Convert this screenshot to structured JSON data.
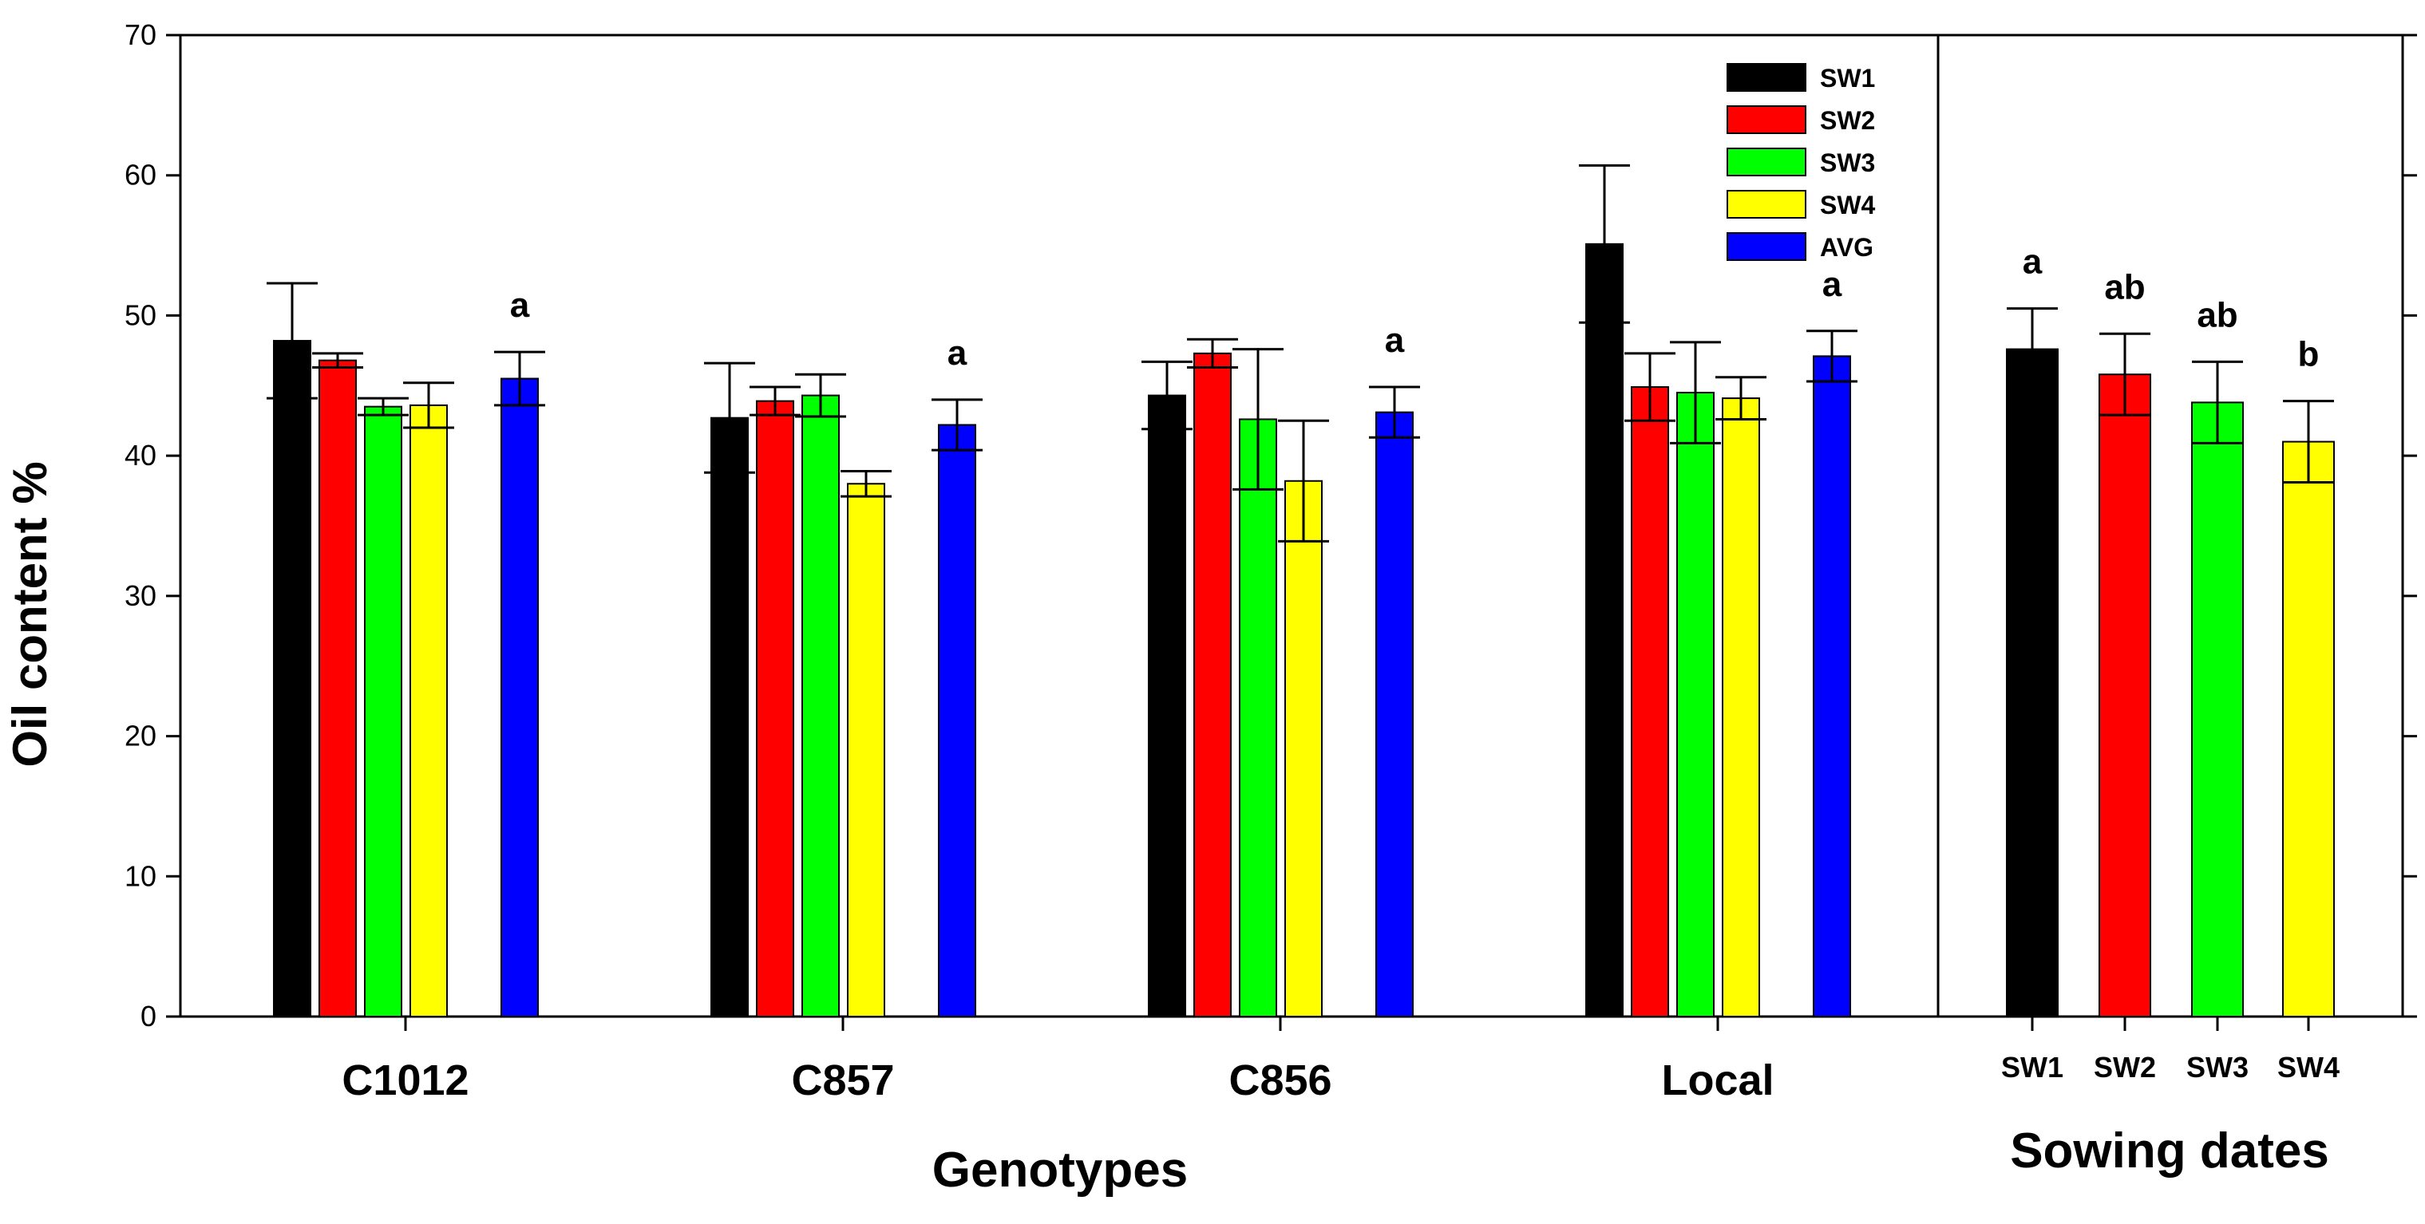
{
  "chart_data": {
    "type": "bar",
    "y_axis": {
      "label": "Oil content %",
      "ylim": [
        0,
        70
      ],
      "ticks": [
        0,
        10,
        20,
        30,
        40,
        50,
        60,
        70
      ]
    },
    "left_panel": {
      "xlabel": "Genotypes",
      "categories": [
        "C1012",
        "C857",
        "C856",
        "Local"
      ],
      "series": [
        {
          "name": "SW1",
          "color": "#000000",
          "values": [
            48.2,
            42.7,
            44.3,
            55.1
          ],
          "errors": [
            4.1,
            3.9,
            2.4,
            5.6
          ]
        },
        {
          "name": "SW2",
          "color": "#ff0000",
          "values": [
            46.8,
            43.9,
            47.3,
            44.9
          ],
          "errors": [
            0.5,
            1.0,
            1.0,
            2.4
          ]
        },
        {
          "name": "SW3",
          "color": "#00ff00",
          "values": [
            43.5,
            44.3,
            42.6,
            44.5
          ],
          "errors": [
            0.6,
            1.5,
            5.0,
            3.6
          ]
        },
        {
          "name": "SW4",
          "color": "#ffff00",
          "values": [
            43.6,
            38.0,
            38.2,
            44.1
          ],
          "errors": [
            1.6,
            0.9,
            4.3,
            1.5
          ]
        },
        {
          "name": "AVG",
          "color": "#0000ff",
          "values": [
            45.5,
            42.2,
            43.1,
            47.1
          ],
          "errors": [
            1.9,
            1.8,
            1.8,
            1.8
          ]
        }
      ],
      "significance": [
        "a",
        "a",
        "a",
        "a"
      ]
    },
    "right_panel": {
      "xlabel": "Sowing dates",
      "categories": [
        "SW1",
        "SW2",
        "SW3",
        "SW4"
      ],
      "colors": [
        "#000000",
        "#ff0000",
        "#00ff00",
        "#ffff00"
      ],
      "values": [
        47.6,
        45.8,
        43.8,
        41.0
      ],
      "errors": [
        2.9,
        2.9,
        2.9,
        2.9
      ],
      "significance": [
        "a",
        "ab",
        "ab",
        "b"
      ]
    },
    "legend": {
      "entries": [
        "SW1",
        "SW2",
        "SW3",
        "SW4",
        "AVG"
      ],
      "placement": "top-center"
    }
  }
}
